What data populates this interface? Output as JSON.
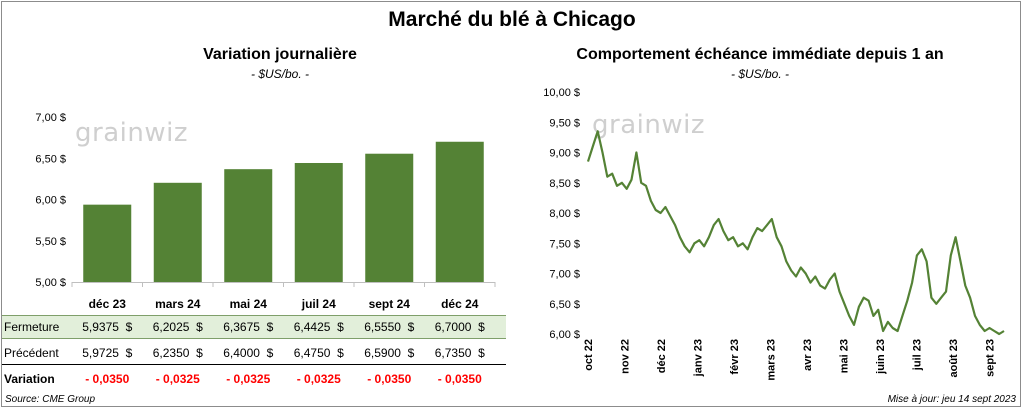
{
  "title": "Marché du blé à Chicago",
  "watermark": "grainwiz",
  "colors": {
    "bar": "#548235",
    "line": "#548235",
    "highlight": "#e2efda",
    "negative": "#ff0000"
  },
  "source": "Source: CME Group",
  "updated": "Mise à jour: jeu 14 sept 2023",
  "table": {
    "rows": [
      {
        "label": "Fermeture",
        "values": [
          "5,9375  $",
          "6,2025  $",
          "6,3675  $",
          "6,4425  $",
          "6,5550  $",
          "6,7000  $"
        ]
      },
      {
        "label": "Précédent",
        "values": [
          "5,9725  $",
          "6,2350  $",
          "6,4000  $",
          "6,4750  $",
          "6,5900  $",
          "6,7350  $"
        ]
      },
      {
        "label": "Variation",
        "values": [
          "- 0,0350",
          "- 0,0325",
          "- 0,0325",
          "- 0,0325",
          "- 0,0350",
          "- 0,0350"
        ]
      }
    ]
  },
  "chart_data": [
    {
      "type": "bar",
      "title": "Variation  journalière",
      "subtitle": "- $US/bo. -",
      "categories": [
        "déc 23",
        "mars 24",
        "mai 24",
        "juil 24",
        "sept 24",
        "déc 24"
      ],
      "values": [
        5.9375,
        6.2025,
        6.3675,
        6.4425,
        6.555,
        6.7
      ],
      "ylim": [
        5.0,
        7.0
      ],
      "yticks": [
        "5,00 $",
        "5,50 $",
        "6,00 $",
        "6,50 $",
        "7,00 $"
      ],
      "grid": false
    },
    {
      "type": "line",
      "title": "Comportement  échéance immédiate depuis 1 an",
      "subtitle": "- $US/bo. -",
      "ylim": [
        6.0,
        10.0
      ],
      "yticks": [
        "6,00 $",
        "6,50 $",
        "7,00 $",
        "7,50 $",
        "8,00 $",
        "8,50 $",
        "9,00 $",
        "9,50 $",
        "10,00 $"
      ],
      "xticks": [
        "oct 22",
        "nov 22",
        "déc 22",
        "janv 23",
        "févr 23",
        "mars 23",
        "avr 23",
        "mai 23",
        "juin 23",
        "juil 23",
        "août 23",
        "sept 23"
      ],
      "grid": false,
      "values": [
        8.85,
        9.1,
        9.35,
        9.0,
        8.6,
        8.65,
        8.45,
        8.5,
        8.4,
        8.55,
        9.0,
        8.5,
        8.45,
        8.2,
        8.05,
        8.0,
        8.1,
        7.95,
        7.8,
        7.6,
        7.45,
        7.35,
        7.5,
        7.55,
        7.45,
        7.6,
        7.8,
        7.9,
        7.7,
        7.55,
        7.6,
        7.45,
        7.5,
        7.4,
        7.6,
        7.75,
        7.7,
        7.8,
        7.9,
        7.6,
        7.45,
        7.2,
        7.05,
        6.95,
        7.1,
        7.0,
        6.85,
        6.95,
        6.8,
        6.75,
        6.9,
        7.0,
        6.7,
        6.5,
        6.3,
        6.15,
        6.45,
        6.6,
        6.55,
        6.3,
        6.4,
        6.05,
        6.2,
        6.1,
        6.05,
        6.3,
        6.55,
        6.85,
        7.3,
        7.4,
        7.2,
        6.6,
        6.5,
        6.6,
        6.7,
        7.3,
        7.6,
        7.2,
        6.8,
        6.6,
        6.3,
        6.15,
        6.05,
        6.1,
        6.05,
        6.0,
        6.05
      ]
    }
  ]
}
